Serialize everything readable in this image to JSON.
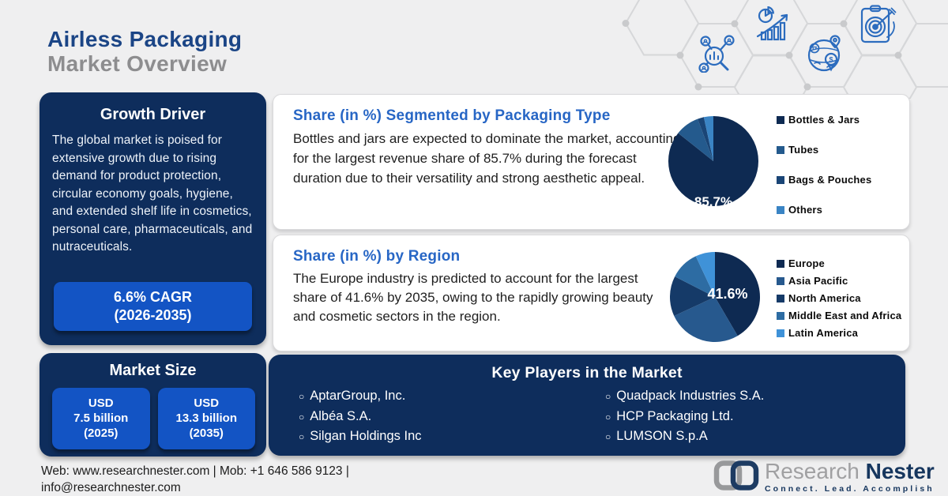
{
  "header": {
    "title_line1": "Airless Packaging",
    "title_line2": "Market Overview",
    "icons": [
      "market-research-icon",
      "growth-analytics-icon",
      "global-market-icon",
      "target-strategy-icon"
    ]
  },
  "growth_driver": {
    "heading": "Growth Driver",
    "body": "The global market is poised for extensive growth due to rising demand for product protection, circular economy goals, hygiene, and extended shelf life in cosmetics, personal care, pharmaceuticals, and nutraceuticals.",
    "cagr_line1": "6.6% CAGR",
    "cagr_line2": "(2026-2035)"
  },
  "market_size": {
    "heading": "Market Size",
    "items": [
      {
        "line1": "USD",
        "line2": "7.5 billion",
        "line3": "(2025)"
      },
      {
        "line1": "USD",
        "line2": "13.3 billion",
        "line3": "(2035)"
      }
    ]
  },
  "packaging_card": {
    "title": "Share (in %) Segmented by Packaging Type",
    "body": "Bottles and jars are expected to dominate the market, accounting for the largest revenue share of 85.7% during the forecast duration due to their versatility and strong aesthetic appeal."
  },
  "region_card": {
    "title": "Share (in %) by Region",
    "body": "The Europe industry is predicted to account for the largest share of 41.6% by 2035, owing to the rapidly growing beauty and cosmetic sectors in the region."
  },
  "chart_data": [
    {
      "type": "pie",
      "title": "Share (in %) Segmented by Packaging Type",
      "labels": [
        "Bottles & Jars",
        "Tubes",
        "Bags & Pouches",
        "Others"
      ],
      "values": [
        85.7,
        8.6,
        2.3,
        3.4
      ],
      "colors": [
        "#0e2a52",
        "#245a8d",
        "#1a4576",
        "#3a84c4"
      ],
      "data_label": "85.7%",
      "legend_position": "right"
    },
    {
      "type": "pie",
      "title": "Share (in %) by Region",
      "labels": [
        "Europe",
        "Asia Pacific",
        "North America",
        "Middle East and Africa",
        "Latin America"
      ],
      "values": [
        41.6,
        26.5,
        14.4,
        10.5,
        7.0
      ],
      "colors": [
        "#0e2a52",
        "#27598e",
        "#153a68",
        "#2d6ca3",
        "#3f92d8"
      ],
      "data_label": "41.6%",
      "legend_position": "right"
    }
  ],
  "key_players": {
    "heading": "Key Players in the Market",
    "col1": [
      "AptarGroup, Inc.",
      "Albéa S.A.",
      "Silgan Holdings Inc"
    ],
    "col2": [
      "Quadpack Industries S.A.",
      "HCP Packaging Ltd.",
      "LUMSON S.p.A"
    ]
  },
  "footer": {
    "contact_line1": "Web: www.researchnester.com | Mob: +1 646 586 9123 |",
    "contact_line2": "info@researchnester.com",
    "logo_text1": "Research",
    "logo_text2": "Nester",
    "tagline": "Connect. Lead. Accomplish"
  },
  "colors": {
    "background": "#efeff0",
    "navy_panel": "#0e2d5c",
    "accent_blue": "#1354c4",
    "heading_blue": "#2766c5",
    "title_navy": "#1b4586",
    "title_gray": "#8d8d8f"
  }
}
